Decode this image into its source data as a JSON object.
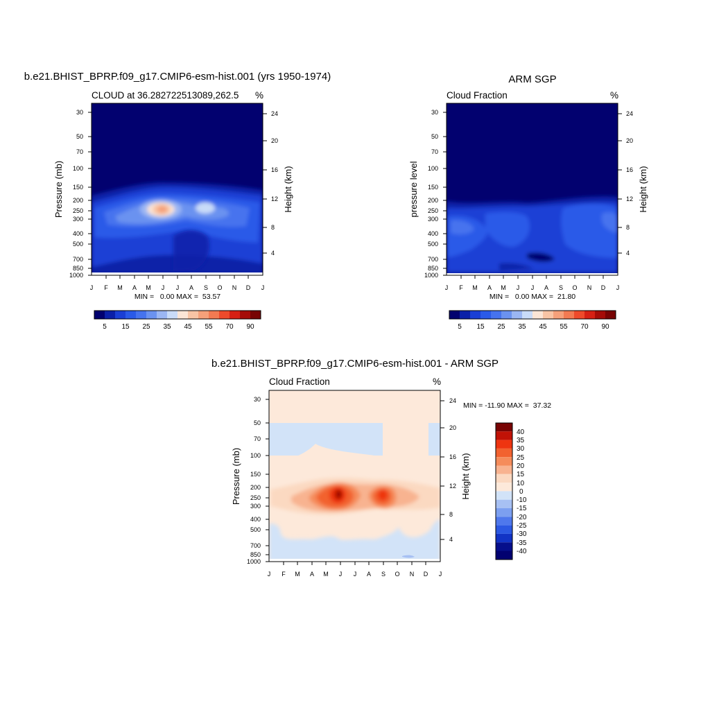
{
  "chart_data": [
    {
      "type": "heatmap",
      "title": "b.e21.BHIST_BPRP.f09_g17.CMIP6-esm-hist.001 (yrs 1950-1974)",
      "subtitle_left": "CLOUD at 36.282722513089,262.5",
      "units": "%",
      "ylabel": "Pressure (mb)",
      "ylabel_right": "Height (km)",
      "x_ticks": [
        "J",
        "F",
        "M",
        "A",
        "M",
        "J",
        "J",
        "A",
        "S",
        "O",
        "N",
        "D",
        "J"
      ],
      "y_ticks": [
        "30",
        "50",
        "70",
        "100",
        "150",
        "200",
        "250",
        "300",
        "400",
        "500",
        "700",
        "850",
        "1000"
      ],
      "height_ticks": [
        "24",
        "20",
        "16",
        "12",
        "8",
        "4"
      ],
      "stats": {
        "min": 0.0,
        "max": 53.57,
        "text": "MIN =   0.00 MAX =  53.57"
      },
      "legend_labels": [
        "5",
        "15",
        "25",
        "35",
        "45",
        "55",
        "70",
        "90"
      ],
      "peak": {
        "month": "J",
        "pressure": 250,
        "value": 53.57
      }
    },
    {
      "type": "heatmap",
      "title": "ARM SGP",
      "subtitle_left": "Cloud Fraction",
      "units": "%",
      "ylabel": "pressure level",
      "ylabel_right": "Height (km)",
      "x_ticks": [
        "J",
        "F",
        "M",
        "A",
        "M",
        "J",
        "J",
        "A",
        "S",
        "O",
        "N",
        "D",
        "J"
      ],
      "y_ticks": [
        "30",
        "50",
        "70",
        "100",
        "150",
        "200",
        "250",
        "300",
        "400",
        "500",
        "700",
        "850",
        "1000"
      ],
      "height_ticks": [
        "24",
        "20",
        "16",
        "12",
        "8",
        "4"
      ],
      "stats": {
        "min": 0.0,
        "max": 21.8,
        "text": "MIN =   0.00 MAX =  21.80"
      },
      "legend_labels": [
        "5",
        "15",
        "25",
        "35",
        "45",
        "55",
        "70",
        "90"
      ]
    },
    {
      "type": "heatmap",
      "title": "b.e21.BHIST_BPRP.f09_g17.CMIP6-esm-hist.001 - ARM SGP",
      "subtitle_left": "Cloud Fraction",
      "units": "%",
      "ylabel": "Pressure (mb)",
      "ylabel_right": "Height (km)",
      "x_ticks": [
        "J",
        "F",
        "M",
        "A",
        "M",
        "J",
        "J",
        "A",
        "S",
        "O",
        "N",
        "D",
        "J"
      ],
      "y_ticks": [
        "30",
        "50",
        "70",
        "100",
        "150",
        "200",
        "250",
        "300",
        "400",
        "500",
        "700",
        "850",
        "1000"
      ],
      "height_ticks": [
        "24",
        "20",
        "16",
        "12",
        "8",
        "4"
      ],
      "stats": {
        "min": -11.9,
        "max": 37.32,
        "text": "MIN = -11.90 MAX =  37.32"
      },
      "legend_labels": [
        "40",
        "35",
        "30",
        "25",
        "20",
        "15",
        "10",
        "0",
        "-10",
        "-15",
        "-20",
        "-25",
        "-30",
        "-35",
        "-40"
      ]
    }
  ],
  "colors": {
    "seq_scale": [
      "#02016f",
      "#0b20a8",
      "#1a3fd5",
      "#2a5ae8",
      "#4673ee",
      "#6b92f0",
      "#9bb6f3",
      "#c9dbf8",
      "#fbe5d6",
      "#f8c4a5",
      "#f5a07a",
      "#f27a52",
      "#ee4a2b",
      "#d62014",
      "#a50c08",
      "#780404"
    ],
    "div_scale": [
      "#780404",
      "#c11206",
      "#ee3410",
      "#f2622f",
      "#f58c5b",
      "#f8b390",
      "#fbd9c1",
      "#fde9da",
      "#d2e3f8",
      "#a7c0f3",
      "#7c9ff0",
      "#4f78ec",
      "#2c58e2",
      "#1233c5",
      "#060f8b",
      "#020170"
    ]
  }
}
